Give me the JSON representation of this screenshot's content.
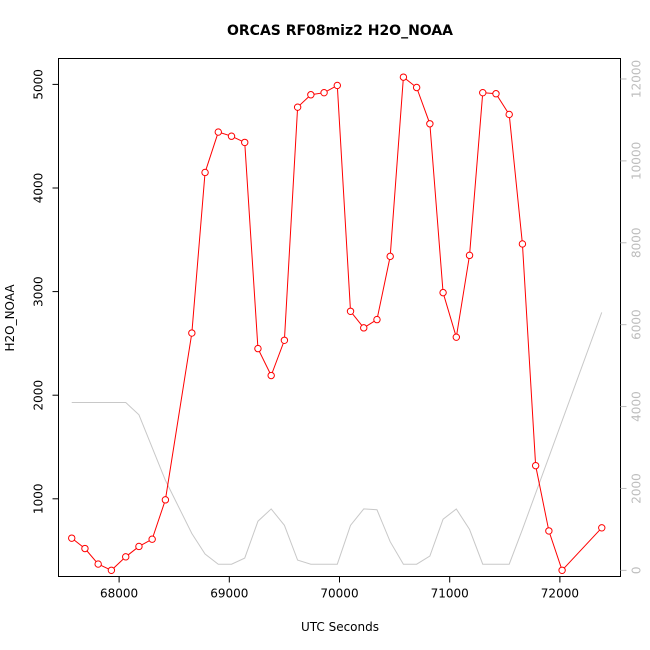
{
  "chart_data": {
    "type": "line",
    "title": "ORCAS RF08miz2 H2O_NOAA",
    "xlabel": "UTC Seconds",
    "ylabel": "H2O_NOAA",
    "xlim": [
      67450,
      72550
    ],
    "ylim": [
      250,
      5250
    ],
    "y2lim": [
      -150,
      12500
    ],
    "x_ticks": [
      68000,
      69000,
      70000,
      71000,
      72000
    ],
    "y_ticks": [
      1000,
      2000,
      3000,
      4000,
      5000
    ],
    "y2_ticks": [
      0,
      2000,
      4000,
      6000,
      8000,
      10000,
      12000
    ],
    "grid": false,
    "legend": "none",
    "colors": {
      "primary": "#ff0000",
      "secondary": "#c8c8c8",
      "axis": "#000000",
      "right_axis": "#bdbdbd"
    },
    "series": [
      {
        "axis": "left",
        "style": "line+points",
        "x": [
          67570,
          67690,
          67810,
          67930,
          68060,
          68180,
          68300,
          68420,
          68660,
          68780,
          68900,
          69020,
          69140,
          69260,
          69380,
          69500,
          69620,
          69740,
          69860,
          69980,
          70100,
          70220,
          70340,
          70460,
          70580,
          70700,
          70820,
          70940,
          71060,
          71180,
          71300,
          71420,
          71540,
          71660,
          71780,
          71900,
          72020,
          72380
        ],
        "values": [
          620,
          520,
          370,
          310,
          440,
          540,
          610,
          990,
          2600,
          4150,
          4540,
          4500,
          4440,
          2450,
          2190,
          2530,
          4780,
          4900,
          4920,
          4990,
          2810,
          2650,
          2730,
          3340,
          5070,
          4970,
          4620,
          2990,
          2560,
          3350,
          4920,
          4910,
          4710,
          3460,
          1320,
          690,
          310,
          720
        ]
      },
      {
        "axis": "right",
        "style": "line",
        "x": [
          67570,
          68060,
          68180,
          68420,
          68660,
          68780,
          68900,
          69020,
          69140,
          69260,
          69380,
          69500,
          69620,
          69740,
          69860,
          69980,
          70100,
          70220,
          70340,
          70460,
          70580,
          70700,
          70820,
          70940,
          71060,
          71180,
          71300,
          71420,
          71540,
          71660,
          72380
        ],
        "values": [
          4100,
          4100,
          3800,
          2200,
          900,
          400,
          150,
          150,
          300,
          1200,
          1500,
          1100,
          250,
          150,
          150,
          150,
          1100,
          1500,
          1480,
          700,
          150,
          150,
          350,
          1250,
          1500,
          1000,
          150,
          150,
          150,
          1000,
          6300
        ]
      }
    ]
  }
}
